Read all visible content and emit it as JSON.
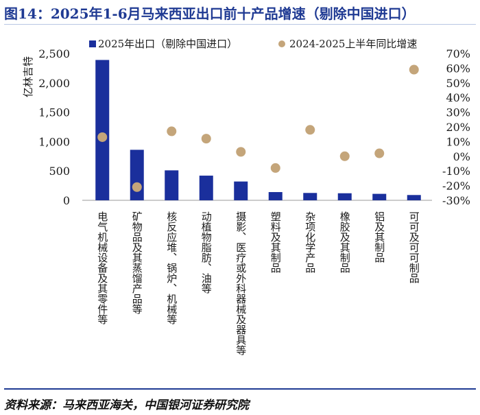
{
  "page": {
    "title": "图14：2025年1-6月马来西亚出口前十产品增速（剔除中国进口）",
    "source": "资料来源：马来西亚海关，中国银河证券研究院"
  },
  "colors": {
    "bar": "#1a2f9c",
    "dot": "#c4a57a",
    "title": "#1f3a93"
  },
  "chart_data": {
    "type": "bar",
    "categories": [
      "电气机械设备及其零件等",
      "矿物品及其蒸馏产品等",
      "核反应堆、锅炉、机械等",
      "动植物脂肪、油等",
      "摄影、医疗或外科器械及器具等",
      "塑料及其制品",
      "杂项化学产品",
      "橡胶及其制品",
      "铝及其制品",
      "可可及可可制品"
    ],
    "series": [
      {
        "name": "2025年出口（剔除中国进口）",
        "type": "bar",
        "axis": "left",
        "values": [
          2390,
          860,
          510,
          420,
          320,
          140,
          125,
          120,
          110,
          90
        ]
      },
      {
        "name": "2024-2025上半年同比增速",
        "type": "scatter",
        "axis": "right",
        "unit": "%",
        "values": [
          13,
          -21,
          17,
          12,
          3,
          -8,
          18,
          0,
          2,
          59
        ]
      }
    ],
    "ylabel": "亿林吉特",
    "ylim": [
      0,
      2500
    ],
    "yticks": [
      "2,500",
      "2,000",
      "1,500",
      "1,000",
      "500",
      "0"
    ],
    "y2lim": [
      -30,
      70
    ],
    "y2ticks": [
      "70%",
      "60%",
      "50%",
      "40%",
      "30%",
      "20%",
      "10%",
      "0%",
      "-10%",
      "-20%",
      "-30%"
    ]
  }
}
